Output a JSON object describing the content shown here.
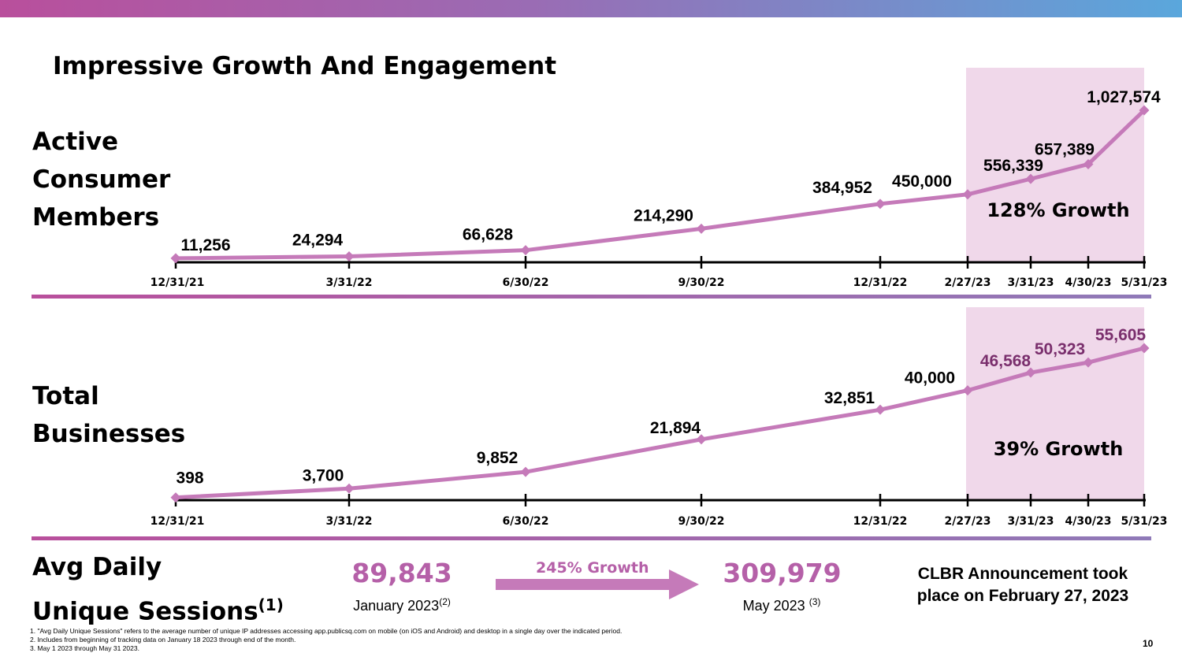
{
  "title": "Impressive Growth And Engagement",
  "colors": {
    "line": "#c57ab9",
    "highlight": "#f0d8ea",
    "accent": "#b560a8",
    "axis": "#000000",
    "axis_pink": "#7a2f6d"
  },
  "sections": {
    "members_label": [
      "Active",
      "Consumer",
      "Members"
    ],
    "businesses_label": [
      "Total",
      "Businesses"
    ],
    "sessions_label": {
      "line1": "Avg Daily",
      "line2": "Unique Sessions",
      "superscript": "(1)"
    }
  },
  "chart_data": [
    {
      "type": "line",
      "ylabel": "",
      "x": [
        "12/31/21",
        "3/31/22",
        "6/30/22",
        "9/30/22",
        "12/31/22",
        "2/27/23",
        "3/31/23",
        "4/30/23",
        "5/31/23"
      ],
      "values": [
        11256,
        24294,
        66628,
        214290,
        384952,
        450000,
        556339,
        657389,
        1027574
      ],
      "value_labels": [
        "11,256",
        "24,294",
        "66,628",
        "214,290",
        "384,952",
        "450,000",
        "556,339",
        "657,389",
        "1,027,574"
      ],
      "highlight": {
        "from": "2/27/23",
        "to": "5/31/23",
        "label": "128% Growth"
      }
    },
    {
      "type": "line",
      "ylabel": "",
      "x": [
        "12/31/21",
        "3/31/22",
        "6/30/22",
        "9/30/22",
        "12/31/22",
        "2/27/23",
        "3/31/23",
        "4/30/23",
        "5/31/23"
      ],
      "values": [
        398,
        3700,
        9852,
        21894,
        32851,
        40000,
        46568,
        50323,
        55605
      ],
      "value_labels": [
        "398",
        "3,700",
        "9,852",
        "21,894",
        "32,851",
        "40,000",
        "46,568",
        "50,323",
        "55,605"
      ],
      "highlight": {
        "from": "2/27/23",
        "to": "5/31/23",
        "label": "39% Growth"
      }
    }
  ],
  "sessions": {
    "from_value": "89,843",
    "from_date": "January 2023",
    "from_note": "(2)",
    "growth_label": "245% Growth",
    "to_value": "309,979",
    "to_date": "May 2023",
    "to_note": "(3)"
  },
  "announcement": "CLBR Announcement took place on February 27, 2023",
  "footnotes": [
    "1. \"Avg Daily Unique Sessions\" refers to the average number of unique IP addresses accessing app.publicsq.com on mobile (on iOS and Android) and desktop in a single day over the indicated period.",
    "2. Includes from beginning of tracking data on January 18 2023 through end of the month.",
    "3. May 1 2023 through May 31 2023."
  ],
  "page_number": "10"
}
